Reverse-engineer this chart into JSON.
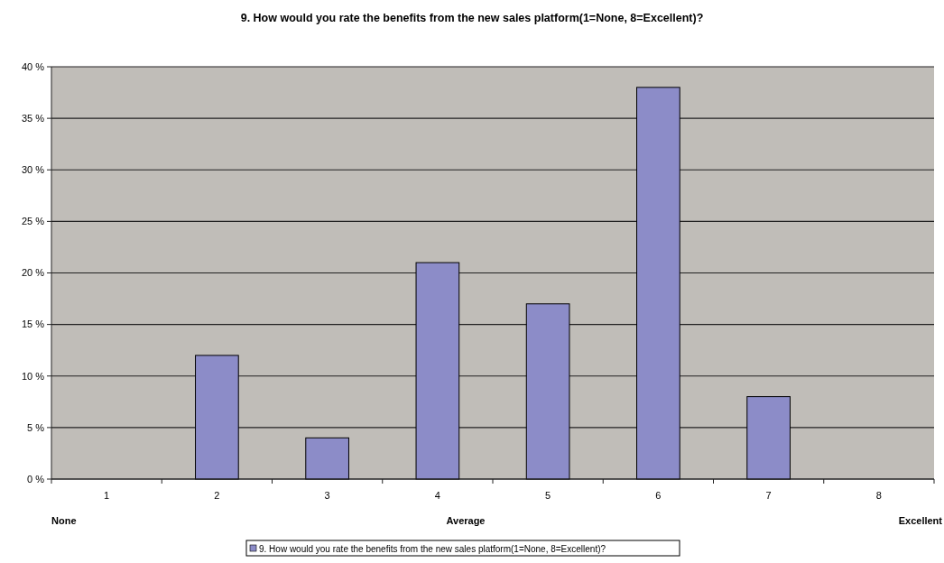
{
  "chart_data": {
    "type": "bar",
    "title": "9. How would you rate the benefits from the new sales platform(1=None, 8=Excellent)?",
    "categories": [
      "1",
      "2",
      "3",
      "4",
      "5",
      "6",
      "7",
      "8"
    ],
    "series": [
      {
        "name": "9. How would you rate the benefits from the new sales platform(1=None, 8=Excellent)?",
        "color": "#8c8cc8",
        "values": [
          0,
          12,
          4,
          21,
          17,
          38,
          8,
          0
        ]
      }
    ],
    "ylim": [
      0,
      40
    ],
    "yticks": [
      {
        "value": 0,
        "label": "0 %"
      },
      {
        "value": 5,
        "label": "5 %"
      },
      {
        "value": 10,
        "label": "10 %"
      },
      {
        "value": 15,
        "label": "15 %"
      },
      {
        "value": 20,
        "label": "20 %"
      },
      {
        "value": 25,
        "label": "25 %"
      },
      {
        "value": 30,
        "label": "30 %"
      },
      {
        "value": 35,
        "label": "35 %"
      },
      {
        "value": 40,
        "label": "40 %"
      }
    ],
    "grid": "y",
    "legend": "bottom",
    "annotations": [
      "None",
      "Average",
      "Excellent"
    ]
  }
}
